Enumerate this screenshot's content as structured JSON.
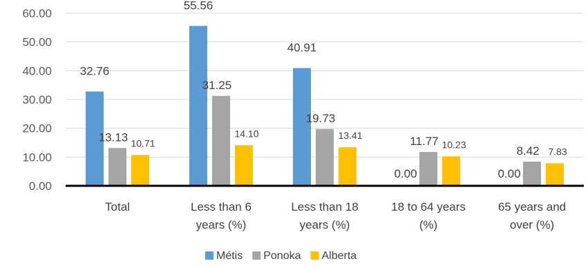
{
  "chart_data": {
    "type": "bar",
    "categories": [
      [
        "Total"
      ],
      [
        "Less than 6",
        "years (%)"
      ],
      [
        "Less than 18",
        "years (%)"
      ],
      [
        "18 to 64 years",
        "(%)"
      ],
      [
        "65 years and",
        "over (%)"
      ]
    ],
    "series": [
      {
        "name": "Métis",
        "color": "#5B9BD5",
        "values": [
          32.76,
          55.56,
          40.91,
          0.0,
          0.0
        ],
        "labels": [
          "32.76",
          "55.56",
          "40.91",
          "0.00",
          "0.00"
        ]
      },
      {
        "name": "Ponoka",
        "color": "#A5A5A5",
        "values": [
          13.13,
          31.25,
          19.73,
          11.77,
          8.42
        ],
        "labels": [
          "13.13",
          "31.25",
          "19.73",
          "11.77",
          "8.42"
        ]
      },
      {
        "name": "Alberta",
        "color": "#FFC000",
        "values": [
          10.71,
          14.1,
          13.41,
          10.23,
          7.83
        ],
        "labels": [
          "10.71",
          "14.10",
          "13.41",
          "10.23",
          "7.83"
        ]
      }
    ],
    "yticks": [
      "0.00",
      "10.00",
      "20.00",
      "30.00",
      "40.00",
      "50.00",
      "60.00"
    ],
    "ylim": [
      0,
      60
    ],
    "grid": true,
    "legend_position": "bottom-center"
  }
}
